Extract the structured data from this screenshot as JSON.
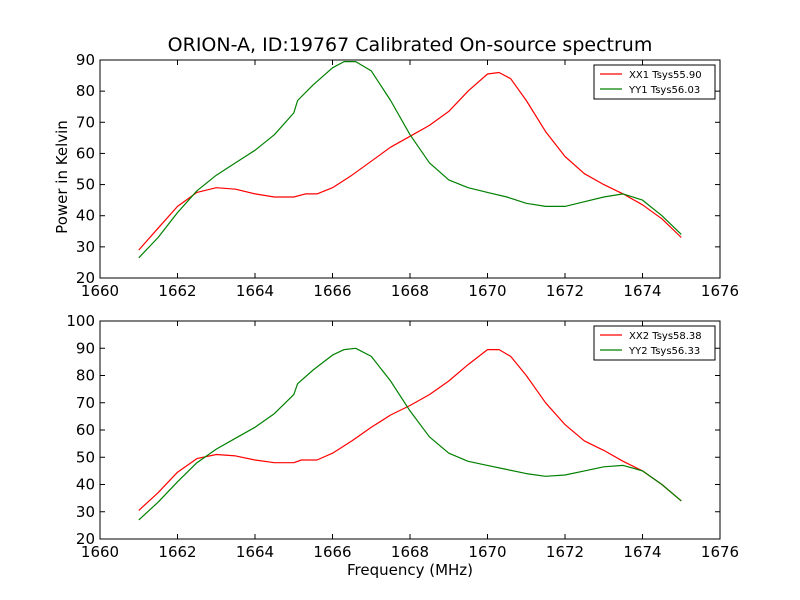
{
  "title": "ORION-A, ID:19767 Calibrated On-source spectrum",
  "xlabel": "Frequency (MHz)",
  "ylabel": "Power in Kelvin",
  "colors": {
    "xx": "#ff0000",
    "yy": "#008000",
    "axes": "#000000",
    "background": "#ffffff"
  },
  "chart_data": [
    {
      "type": "line",
      "xlim": [
        1660,
        1676
      ],
      "ylim": [
        20,
        90
      ],
      "xticks": [
        1660,
        1662,
        1664,
        1666,
        1668,
        1670,
        1672,
        1674,
        1676
      ],
      "yticks": [
        20,
        30,
        40,
        50,
        60,
        70,
        80,
        90
      ],
      "legend": "top-right",
      "grid": false,
      "series": [
        {
          "name": "XX1 Tsys55.90",
          "color": "#ff0000",
          "x": [
            1661,
            1661.5,
            1662,
            1662.5,
            1663,
            1663.5,
            1664,
            1664.5,
            1665,
            1665.3,
            1665.6,
            1666,
            1666.5,
            1667,
            1667.5,
            1668,
            1668.5,
            1669,
            1669.5,
            1670,
            1670.3,
            1670.6,
            1671,
            1671.5,
            1672,
            1672.5,
            1673,
            1673.5,
            1674,
            1674.5,
            1675
          ],
          "y": [
            29,
            36,
            43,
            47.5,
            49,
            48.5,
            47,
            46,
            46,
            47,
            47,
            49,
            53,
            57.5,
            62,
            65.5,
            69,
            73.5,
            80,
            85.5,
            86,
            84,
            77,
            67,
            59,
            53.5,
            50,
            47,
            43.5,
            39,
            33
          ]
        },
        {
          "name": "YY1 Tsys56.03",
          "color": "#008000",
          "x": [
            1661,
            1661.5,
            1662,
            1662.5,
            1663,
            1663.5,
            1664,
            1664.5,
            1665,
            1665.1,
            1665.5,
            1666,
            1666.3,
            1666.6,
            1667,
            1667.5,
            1668,
            1668.5,
            1669,
            1669.5,
            1670,
            1670.5,
            1671,
            1671.5,
            1672,
            1672.5,
            1673,
            1673.5,
            1674,
            1674.5,
            1675
          ],
          "y": [
            26.5,
            33,
            41,
            48,
            53,
            57,
            61,
            66,
            73,
            77,
            82,
            87.5,
            89.5,
            89.5,
            86.5,
            77,
            66,
            57,
            51.5,
            49,
            47.5,
            46,
            44,
            43,
            43,
            44.5,
            46,
            47,
            45,
            40,
            34
          ]
        }
      ]
    },
    {
      "type": "line",
      "xlim": [
        1660,
        1676
      ],
      "ylim": [
        20,
        100
      ],
      "xticks": [
        1660,
        1662,
        1664,
        1666,
        1668,
        1670,
        1672,
        1674,
        1676
      ],
      "yticks": [
        20,
        30,
        40,
        50,
        60,
        70,
        80,
        90,
        100
      ],
      "legend": "top-right",
      "grid": false,
      "series": [
        {
          "name": "XX2 Tsys58.38",
          "color": "#ff0000",
          "x": [
            1661,
            1661.5,
            1662,
            1662.5,
            1663,
            1663.5,
            1664,
            1664.5,
            1665,
            1665.2,
            1665.6,
            1666,
            1666.5,
            1667,
            1667.5,
            1668,
            1668.5,
            1669,
            1669.5,
            1670,
            1670.3,
            1670.6,
            1671,
            1671.5,
            1672,
            1672.5,
            1673,
            1673.5,
            1674,
            1674.5,
            1675
          ],
          "y": [
            30.5,
            37,
            44.5,
            49.5,
            51,
            50.5,
            49,
            48,
            48,
            49,
            49,
            51.5,
            56,
            61,
            65.5,
            69,
            73,
            78,
            84,
            89.5,
            89.5,
            87,
            80,
            70,
            62,
            56,
            52.5,
            48.5,
            45,
            40,
            34
          ]
        },
        {
          "name": "YY2 Tsys56.33",
          "color": "#008000",
          "x": [
            1661,
            1661.5,
            1662,
            1662.5,
            1663,
            1663.5,
            1664,
            1664.5,
            1665,
            1665.1,
            1665.5,
            1666,
            1666.3,
            1666.6,
            1667,
            1667.5,
            1668,
            1668.5,
            1669,
            1669.5,
            1670,
            1670.5,
            1671,
            1671.5,
            1672,
            1672.5,
            1673,
            1673.5,
            1674,
            1674.5,
            1675
          ],
          "y": [
            27,
            33.5,
            41,
            48,
            53,
            57,
            61,
            66,
            73,
            77,
            82,
            87.5,
            89.5,
            90,
            87,
            78,
            67,
            57.5,
            51.5,
            48.5,
            47,
            45.5,
            44,
            43,
            43.5,
            45,
            46.5,
            47,
            45,
            40,
            34
          ]
        }
      ]
    }
  ]
}
